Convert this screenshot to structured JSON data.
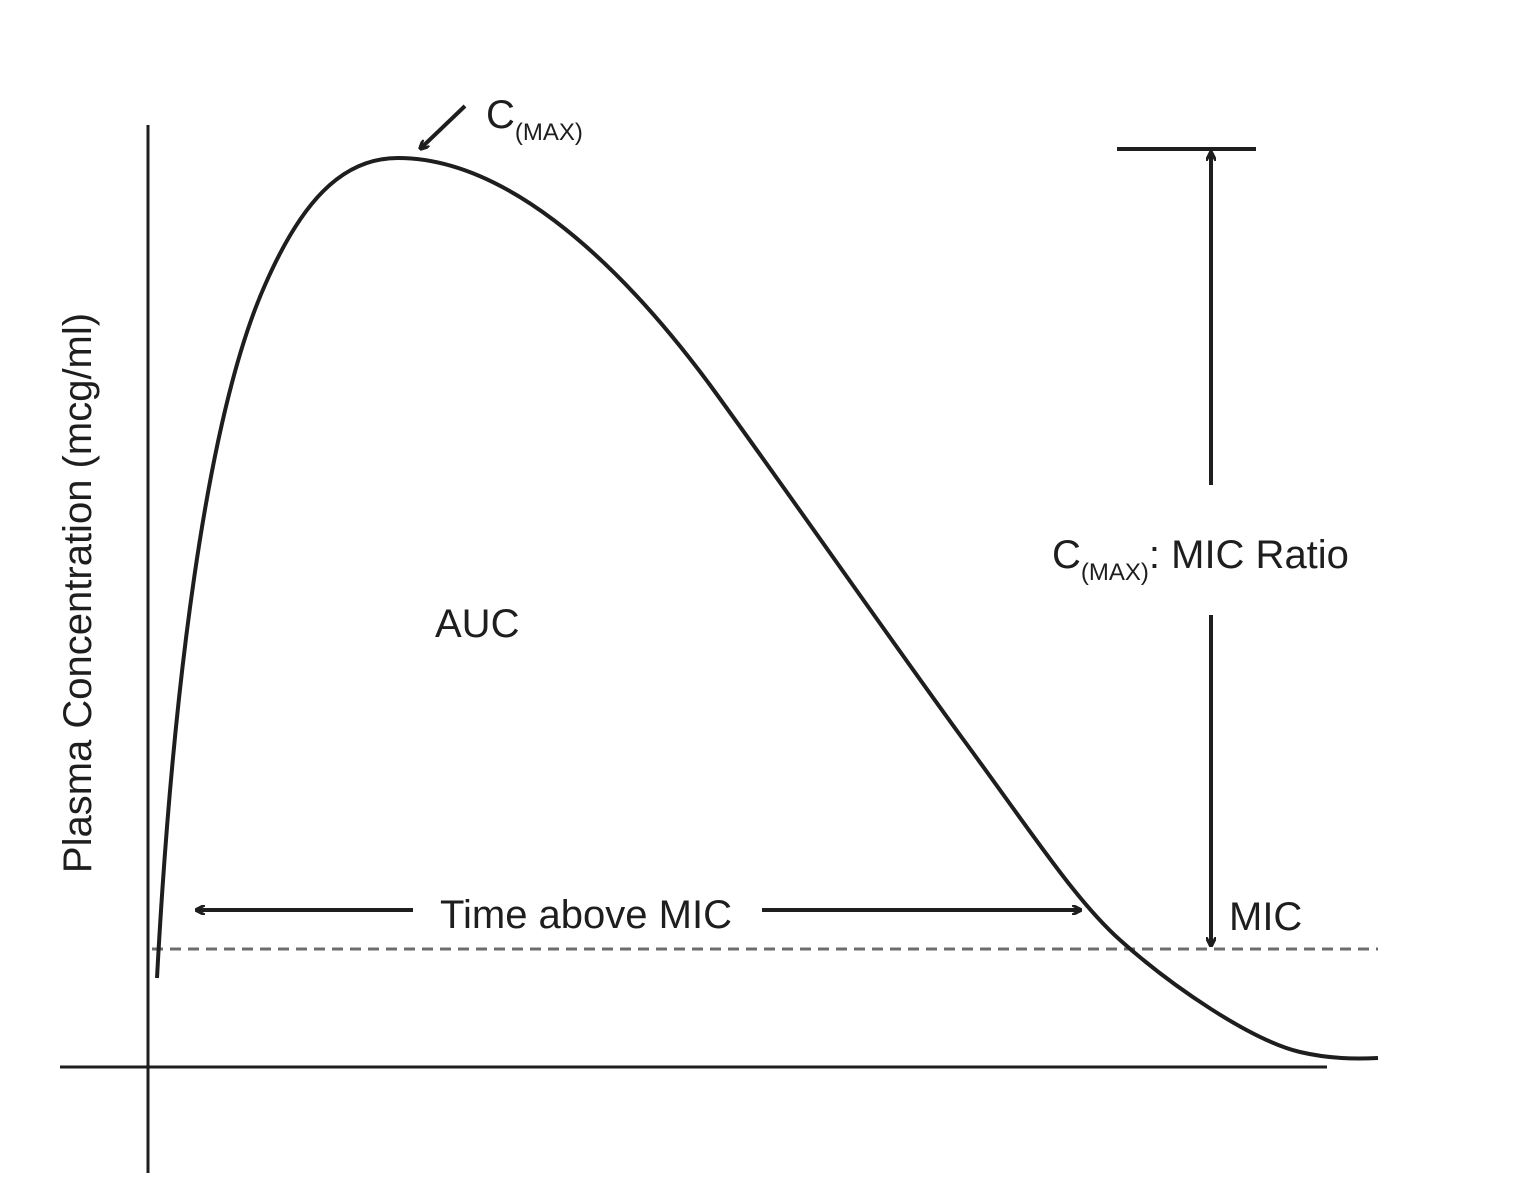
{
  "y_axis_label": "Plasma Concentration (mcg/ml)",
  "cmax_label": {
    "main": "C",
    "sub": "(MAX)"
  },
  "auc_label": "AUC",
  "time_above_mic_label": "Time above MIC",
  "mic_label": "MIC",
  "ratio_label": {
    "main": "C",
    "sub": "(MAX)",
    "suffix": ": MIC Ratio"
  }
}
